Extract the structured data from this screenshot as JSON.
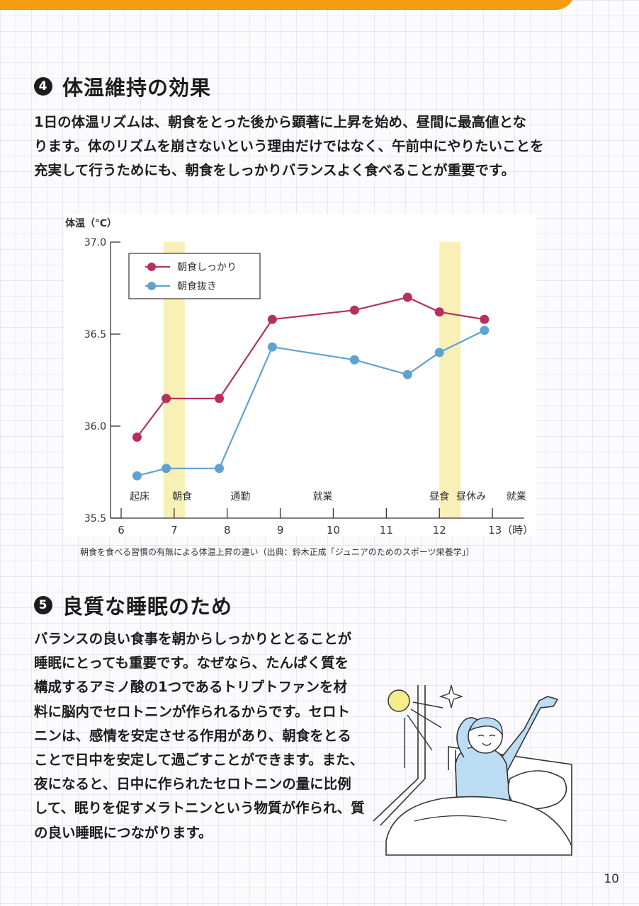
{
  "section4": {
    "number": "4",
    "title": "体温維持の効果",
    "body_lines": [
      "1日の体温リズムは、朝食をとった後から顕著に上昇を始め、昼間に最高値とな",
      "ります。体のリズムを崩さないという理由だけではなく、午前中にやりたいことを",
      "充実して行うためにも、朝食をしっかりバランスよく食べることが重要です。"
    ]
  },
  "chart_caption": "朝食を食べる習慣の有無による体温上昇の違い（出典：鈴木正成「ジュニアのためのスポーツ栄養学」）",
  "chart_data": {
    "type": "line",
    "ylabel": "体温（℃）",
    "ylim": [
      35.5,
      37.0
    ],
    "yticks": [
      "37.0",
      "36.5",
      "36.0",
      "35.5"
    ],
    "ytick_values": [
      37.0,
      36.5,
      36.0,
      35.5
    ],
    "xlim": [
      5.8,
      13.6
    ],
    "xticks": [
      "6",
      "7",
      "8",
      "9",
      "10",
      "11",
      "12",
      "13（時）"
    ],
    "xtick_values": [
      6,
      7,
      8,
      9,
      10,
      11,
      12,
      13
    ],
    "highlight_bands": [
      [
        6.8,
        7.2
      ],
      [
        12.0,
        12.4
      ]
    ],
    "band_color": "#f8f0b4",
    "annotations": [
      {
        "text": "起床",
        "x": 6.35
      },
      {
        "text": "朝食",
        "x": 7.15
      },
      {
        "text": "通勤",
        "x": 8.25
      },
      {
        "text": "就業",
        "x": 9.8
      },
      {
        "text": "昼食",
        "x": 12.0
      },
      {
        "text": "昼休み",
        "x": 12.6
      },
      {
        "text": "就業",
        "x": 13.45
      }
    ],
    "series": [
      {
        "name": "朝食しっかり",
        "color": "#b5305e",
        "x": [
          6.3,
          6.85,
          7.85,
          8.85,
          10.4,
          11.4,
          12.0,
          12.85
        ],
        "values": [
          35.94,
          36.15,
          36.15,
          36.58,
          36.63,
          36.7,
          36.62,
          36.58
        ]
      },
      {
        "name": "朝食抜き",
        "color": "#5ea3cf",
        "x": [
          6.3,
          6.85,
          7.85,
          8.85,
          10.4,
          11.4,
          12.0,
          12.85
        ],
        "values": [
          35.73,
          35.77,
          35.77,
          36.43,
          36.36,
          36.28,
          36.4,
          36.52
        ]
      }
    ]
  },
  "section5": {
    "number": "5",
    "title": "良質な睡眠のため",
    "body_lines": [
      "バランスの良い食事を朝からしっかりととることが",
      "睡眠にとっても重要です。なぜなら、たんぱく質を",
      "構成するアミノ酸の1つであるトリプトファンを材",
      "料に脳内でセロトニンが作られるからです。セロト",
      "ニンは、感情を安定させる作用があり、朝食をとる",
      "ことで日中を安定して過ごすことができます。また、",
      "夜になると、日中に作られたセロトニンの量に比例",
      "して、眠りを促すメラトニンという物質が作られ、質",
      "の良い睡眠につながります。"
    ]
  },
  "page_number": "10",
  "colors": {
    "accent": "#f39c12",
    "sun": "#f7ec8c",
    "pajama": "#bcdcf3"
  }
}
